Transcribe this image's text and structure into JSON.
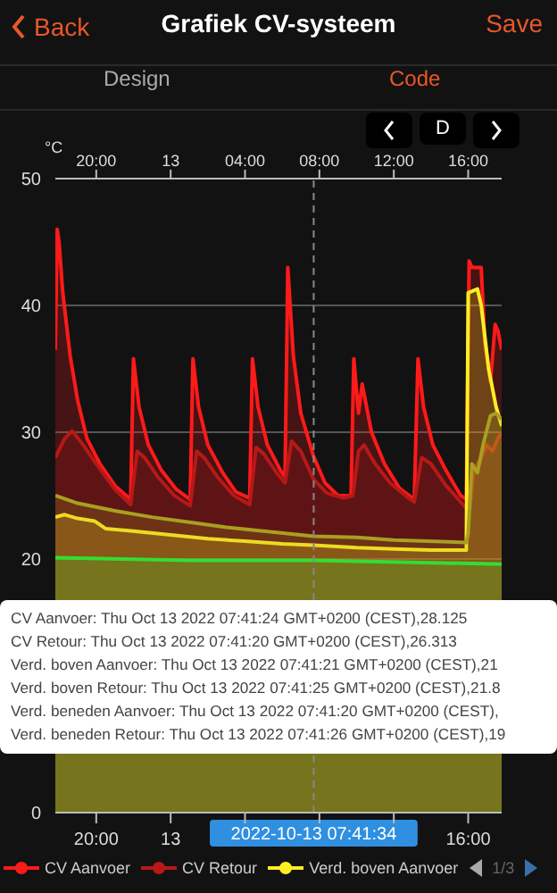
{
  "chart_data": {
    "type": "area",
    "title": "Grafiek CV-systeem",
    "ylabel": "°C",
    "xlim": [
      "2022-10-12T17:48",
      "2022-10-13T17:48"
    ],
    "xticks": [
      {
        "value": "2022-10-12T20:00",
        "label": "20:00"
      },
      {
        "value": "2022-10-13",
        "label": "13"
      },
      {
        "value": "2022-10-13T04:00",
        "label": null
      },
      {
        "value": "2022-10-13T08:00",
        "label": null
      },
      {
        "value": "2022-10-13T12:00",
        "label": null
      },
      {
        "value": "2022-10-13T16:00",
        "label": "16:00"
      }
    ],
    "x2lim": [
      "2022-10-12T17:48",
      "2022-10-13T17:48"
    ],
    "x2ticks": [
      {
        "value": "2022-10-12T20:00",
        "label": "20:00"
      },
      {
        "value": "2022-10-13",
        "label": "13"
      },
      {
        "value": "2022-10-13T04:00",
        "label": "04:00"
      },
      {
        "value": "2022-10-13T08:00",
        "label": "08:00"
      },
      {
        "value": "2022-10-13T12:00",
        "label": "12:00"
      },
      {
        "value": "2022-10-13T16:00",
        "label": "16:00"
      }
    ],
    "ylim": [
      0,
      50
    ],
    "yticks": [
      0,
      20,
      30,
      40,
      50
    ],
    "grid": "y",
    "legend": "bottom",
    "ref_lines": [
      {
        "axis": "x",
        "value": "2022-10-13T07:41:34",
        "label": "2022-10-13 07:41:34",
        "color": "#888888",
        "line_style": "dashed"
      }
    ],
    "series": [
      {
        "name": "CV Aanvoer",
        "color": "#ff1a1a",
        "x": [
          "2022-10-12T17:48",
          "2022-10-12T17:54",
          "2022-10-12T18:00",
          "2022-10-12T18:12",
          "2022-10-12T18:36",
          "2022-10-12T19:00",
          "2022-10-12T19:30",
          "2022-10-12T20:12",
          "2022-10-12T21:00",
          "2022-10-12T21:51",
          "2022-10-12T22:00",
          "2022-10-12T22:18",
          "2022-10-12T22:48",
          "2022-10-12T23:30",
          "2022-10-13T00:18",
          "2022-10-13T01:03",
          "2022-10-13T01:12",
          "2022-10-13T01:30",
          "2022-10-13T02:00",
          "2022-10-13T02:48",
          "2022-10-13T03:30",
          "2022-10-13T04:15",
          "2022-10-13T04:24",
          "2022-10-13T04:42",
          "2022-10-13T05:12",
          "2022-10-13T05:54",
          "2022-10-13T06:09",
          "2022-10-13T06:18",
          "2022-10-13T06:36",
          "2022-10-13T07:00",
          "2022-10-13T07:41",
          "2022-10-13T08:18",
          "2022-10-13T09:00",
          "2022-10-13T09:42",
          "2022-10-13T09:51",
          "2022-10-13T10:06",
          "2022-10-13T10:18",
          "2022-10-13T10:48",
          "2022-10-13T11:30",
          "2022-10-13T12:18",
          "2022-10-13T13:06",
          "2022-10-13T13:18",
          "2022-10-13T13:36",
          "2022-10-13T14:06",
          "2022-10-13T14:48",
          "2022-10-13T15:36",
          "2022-10-13T15:54",
          "2022-10-13T16:03",
          "2022-10-13T16:12",
          "2022-10-13T16:42",
          "2022-10-13T16:54",
          "2022-10-13T17:12",
          "2022-10-13T17:27",
          "2022-10-13T17:36",
          "2022-10-13T17:48"
        ],
        "values": [
          36.5,
          46,
          45,
          41,
          36,
          32.5,
          29.5,
          27.5,
          25.8,
          24.7,
          35.8,
          32,
          29,
          27,
          25.5,
          24.7,
          35.8,
          32,
          29,
          26.8,
          25.3,
          24.8,
          35.8,
          32,
          29,
          27,
          26.5,
          43,
          36,
          31.5,
          28.1,
          26,
          25,
          25,
          35.8,
          31.5,
          33.8,
          30,
          27.5,
          25.6,
          24.7,
          35.8,
          32,
          29,
          27,
          25,
          24.7,
          43.5,
          43,
          43,
          37,
          34,
          38.5,
          38,
          36.5
        ]
      },
      {
        "name": "CV Retour",
        "color": "#b81818",
        "x": [
          "2022-10-12T17:48",
          "2022-10-12T18:18",
          "2022-10-12T18:42",
          "2022-10-12T19:18",
          "2022-10-12T20:00",
          "2022-10-12T21:00",
          "2022-10-12T21:51",
          "2022-10-12T22:12",
          "2022-10-12T22:36",
          "2022-10-12T23:18",
          "2022-10-13T00:12",
          "2022-10-13T01:03",
          "2022-10-13T01:24",
          "2022-10-13T01:48",
          "2022-10-13T02:30",
          "2022-10-13T03:24",
          "2022-10-13T04:15",
          "2022-10-13T04:36",
          "2022-10-13T05:00",
          "2022-10-13T05:42",
          "2022-10-13T06:09",
          "2022-10-13T06:30",
          "2022-10-13T07:00",
          "2022-10-13T07:41",
          "2022-10-13T08:24",
          "2022-10-13T09:18",
          "2022-10-13T09:48",
          "2022-10-13T10:06",
          "2022-10-13T10:24",
          "2022-10-13T11:00",
          "2022-10-13T11:48",
          "2022-10-13T12:48",
          "2022-10-13T13:06",
          "2022-10-13T13:30",
          "2022-10-13T14:00",
          "2022-10-13T14:48",
          "2022-10-13T15:54",
          "2022-10-13T16:06",
          "2022-10-13T16:18",
          "2022-10-13T16:42",
          "2022-10-13T17:00",
          "2022-10-13T17:18",
          "2022-10-13T17:36",
          "2022-10-13T17:48"
        ],
        "values": [
          28,
          29.5,
          30.1,
          29,
          27.5,
          25.5,
          24.3,
          28.5,
          28,
          26.5,
          25,
          24.2,
          28.5,
          28,
          26.5,
          25,
          24.3,
          28.8,
          28.3,
          26.8,
          26,
          29.3,
          28.5,
          26.3,
          25.2,
          24.8,
          25,
          28.5,
          29,
          27.5,
          26,
          24.8,
          24.5,
          28,
          27.5,
          25.8,
          24,
          24,
          27,
          28,
          29,
          28.5,
          29.5,
          30
        ]
      },
      {
        "name": "Verd. boven Aanvoer",
        "color": "#ffee22",
        "x": [
          "2022-10-12T17:48",
          "2022-10-12T18:18",
          "2022-10-12T19:00",
          "2022-10-12T19:54",
          "2022-10-12T20:30",
          "2022-10-12T22:00",
          "2022-10-13T00:00",
          "2022-10-13T02:00",
          "2022-10-13T04:00",
          "2022-10-13T06:00",
          "2022-10-13T07:41",
          "2022-10-13T10:00",
          "2022-10-13T12:00",
          "2022-10-13T14:00",
          "2022-10-13T15:54",
          "2022-10-13T16:00",
          "2022-10-13T16:30",
          "2022-10-13T16:42",
          "2022-10-13T17:06",
          "2022-10-13T17:30",
          "2022-10-13T17:48"
        ],
        "values": [
          23.3,
          23.5,
          23.2,
          23,
          22.4,
          22.2,
          21.9,
          21.6,
          21.4,
          21.2,
          21.1,
          20.9,
          20.8,
          20.7,
          20.7,
          41,
          41.3,
          40,
          35,
          32,
          30.5
        ]
      },
      {
        "color": "#a8a020",
        "x": [
          "2022-10-12T17:48",
          "2022-10-12T19:00",
          "2022-10-12T21:00",
          "2022-10-12T23:00",
          "2022-10-13T01:00",
          "2022-10-13T03:00",
          "2022-10-13T05:00",
          "2022-10-13T07:41",
          "2022-10-13T10:00",
          "2022-10-13T12:00",
          "2022-10-13T15:54",
          "2022-10-13T16:00",
          "2022-10-13T16:12",
          "2022-10-13T16:30",
          "2022-10-13T16:48",
          "2022-10-13T17:12",
          "2022-10-13T17:30",
          "2022-10-13T17:48"
        ],
        "values": [
          25,
          24.4,
          23.8,
          23.3,
          22.9,
          22.5,
          22.2,
          21.8,
          21.7,
          21.5,
          21.3,
          22,
          27.5,
          26.8,
          29,
          31.3,
          31.5,
          31
        ]
      },
      {
        "color": "#33dd33",
        "x": [
          "2022-10-12T17:48",
          "2022-10-13T01:00",
          "2022-10-13T07:41",
          "2022-10-13T17:48"
        ],
        "values": [
          20.1,
          19.9,
          19.9,
          19.6
        ]
      }
    ],
    "annotations": [
      "Back",
      "Save",
      "Design",
      "Code",
      "D",
      "1/3",
      "CV Aanvoer: Thu Oct 13 2022 07:41:24 GMT+0200 (CEST),28.125",
      "CV Retour: Thu Oct 13 2022 07:41:20 GMT+0200 (CEST),26.313",
      "Verd. boven Aanvoer: Thu Oct 13 2022 07:41:21 GMT+0200 (CEST),21",
      "Verd. boven Retour: Thu Oct 13 2022 07:41:25 GMT+0200 (CEST),21.8",
      "Verd. beneden Aanvoer: Thu Oct 13 2022 07:41:20 GMT+0200 (CEST),",
      "Verd. beneden Retour: Thu Oct 13 2022 07:41:26 GMT+0200 (CEST),19"
    ]
  }
}
